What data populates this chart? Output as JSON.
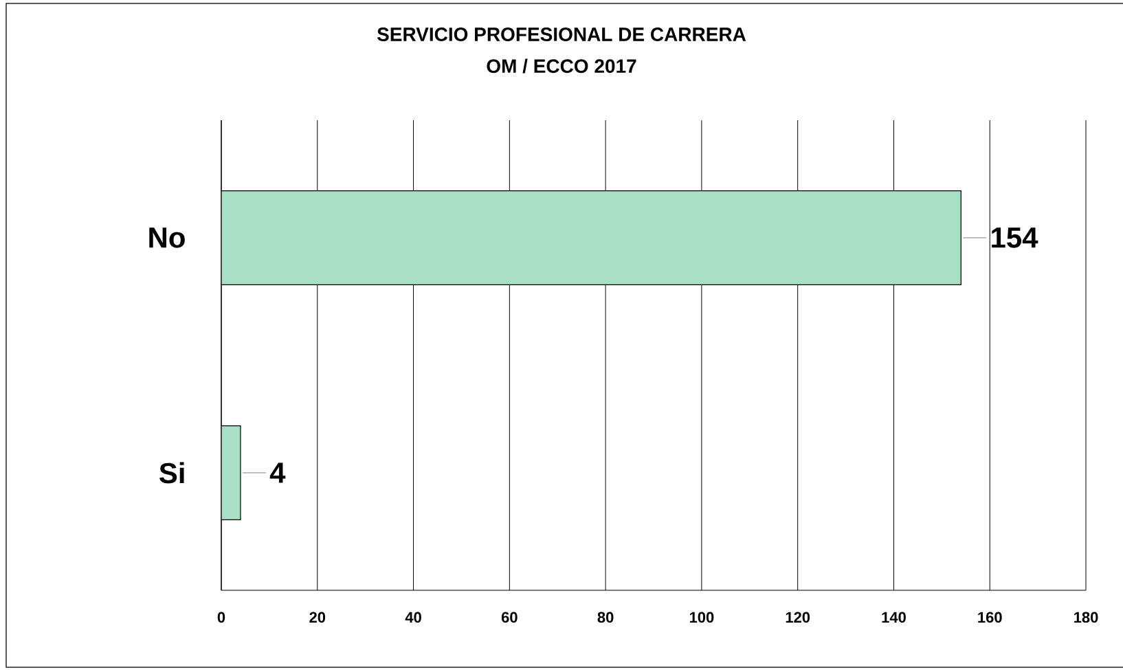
{
  "chart_data": {
    "type": "bar",
    "orientation": "horizontal",
    "title": "SERVICIO PROFESIONAL DE CARRERA",
    "subtitle": "OM / ECCO 2017",
    "categories": [
      "No",
      "Si"
    ],
    "values": [
      154,
      4
    ],
    "color": "#a8dfc5",
    "xlim": [
      0,
      180
    ],
    "xticks": [
      0,
      20,
      40,
      60,
      80,
      100,
      120,
      140,
      160,
      180
    ],
    "grid": "x",
    "data_labels": true
  }
}
